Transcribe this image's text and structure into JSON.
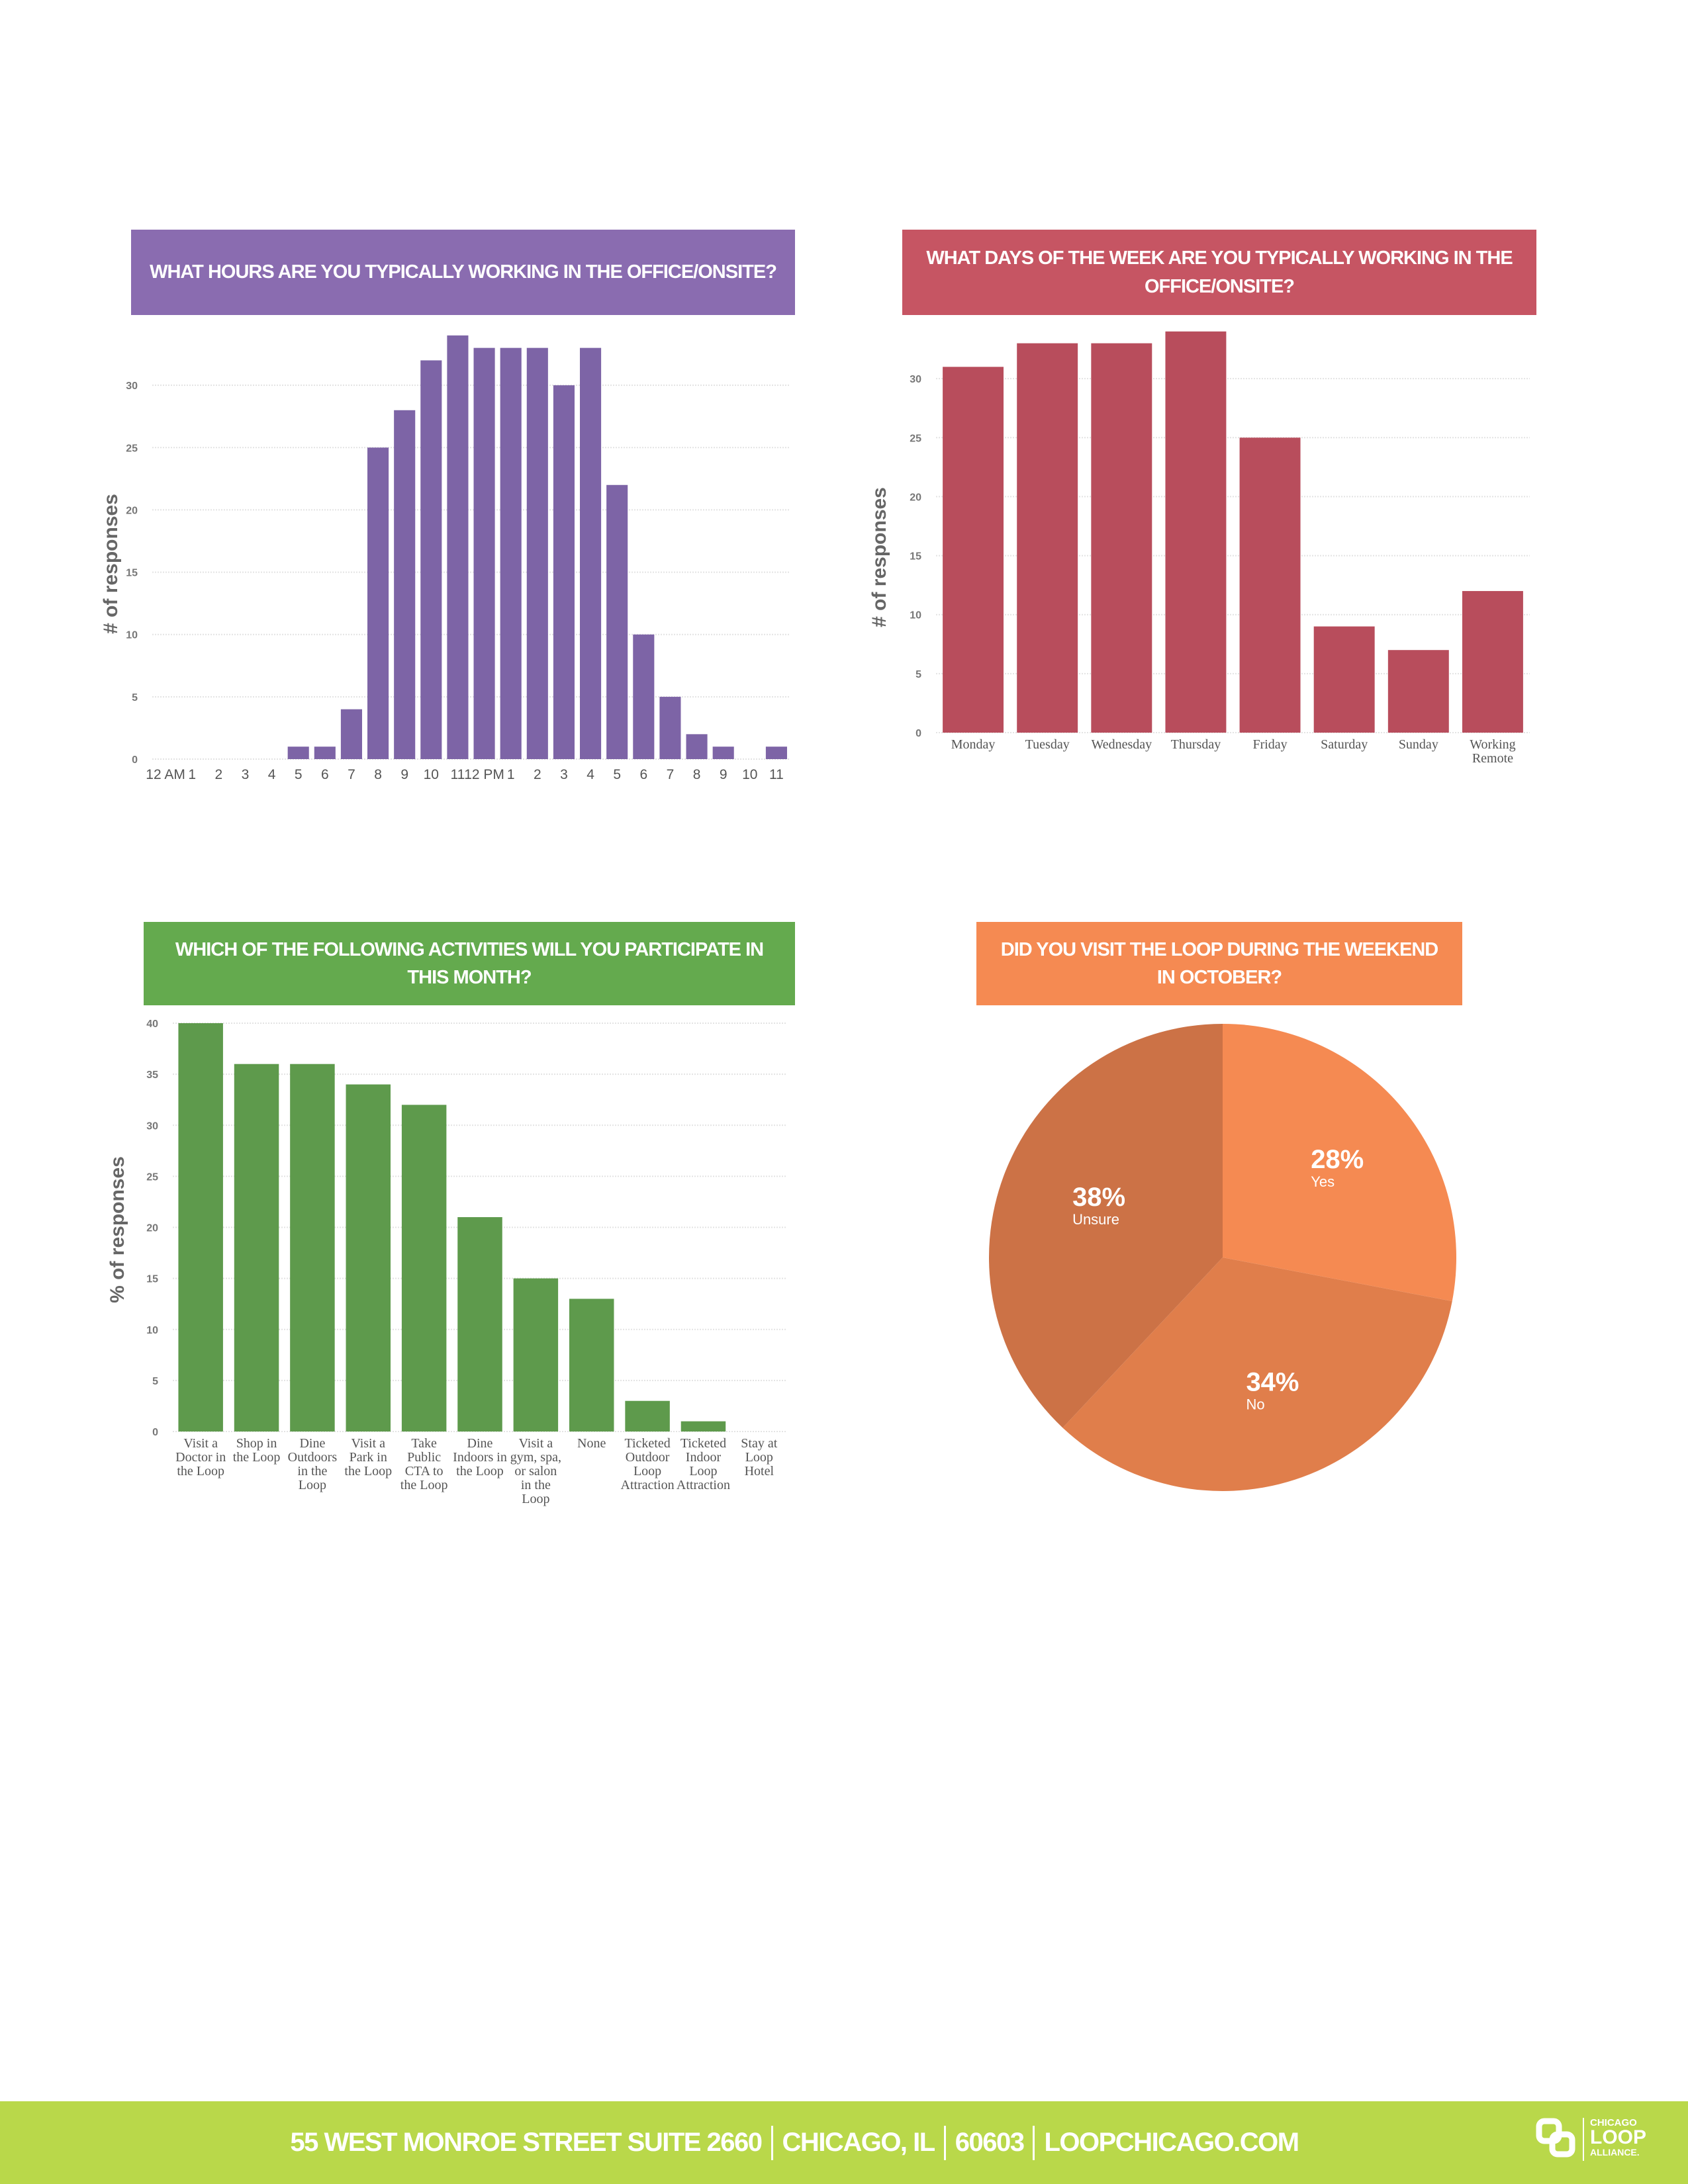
{
  "chart_data": [
    {
      "type": "bar",
      "title": "WHAT HOURS ARE YOU TYPICALLY WORKING IN THE OFFICE/ONSITE?",
      "ylabel": "# of responses",
      "categories": [
        "12 AM",
        "1",
        "2",
        "3",
        "4",
        "5",
        "6",
        "7",
        "8",
        "9",
        "10",
        "11",
        "12 PM",
        "1",
        "2",
        "3",
        "4",
        "5",
        "6",
        "7",
        "8",
        "9",
        "10",
        "11"
      ],
      "values": [
        0,
        0,
        0,
        0,
        0,
        1,
        1,
        4,
        25,
        28,
        32,
        34,
        33,
        33,
        33,
        30,
        33,
        22,
        10,
        5,
        2,
        1,
        0,
        1
      ],
      "color": "#7d64a6",
      "header_color": "#8a6cb0",
      "ylim": [
        0,
        35
      ],
      "yticks": [
        0,
        5,
        10,
        15,
        20,
        25,
        30
      ],
      "grid": true
    },
    {
      "type": "bar",
      "title": "WHAT DAYS OF THE WEEK ARE YOU TYPICALLY WORKING IN THE OFFICE/ONSITE?",
      "ylabel": "# of responses",
      "categories": [
        "Monday",
        "Tuesday",
        "Wednesday",
        "Thursday",
        "Friday",
        "Saturday",
        "Sunday",
        "Working Remote"
      ],
      "values": [
        31,
        33,
        33,
        34,
        25,
        9,
        7,
        12
      ],
      "color": "#b84d5c",
      "header_color": "#c65563",
      "ylim": [
        0,
        35
      ],
      "yticks": [
        0,
        5,
        10,
        15,
        20,
        25,
        30
      ],
      "grid": true
    },
    {
      "type": "bar",
      "title": "WHICH OF THE FOLLOWING ACTIVITIES WILL YOU PARTICIPATE IN THIS MONTH?",
      "ylabel": "% of responses",
      "categories": [
        "Visit a Doctor in the Loop",
        "Shop in the Loop",
        "Dine Outdoors in the Loop",
        "Visit a Park in the Loop",
        "Take Public CTA to the Loop",
        "Dine Indoors in the Loop",
        "Visit a gym, spa, or salon in the Loop",
        "None",
        "Ticketed Outdoor Loop Attraction",
        "Ticketed Indoor Loop Attraction",
        "Stay at Loop Hotel"
      ],
      "values": [
        40,
        36,
        36,
        34,
        32,
        21,
        15,
        13,
        3,
        1,
        0
      ],
      "color": "#5e9a4c",
      "header_color": "#64aa4e",
      "ylim": [
        0,
        40
      ],
      "yticks": [
        0,
        5,
        10,
        15,
        20,
        25,
        30,
        35,
        40
      ],
      "grid": true
    },
    {
      "type": "pie",
      "title": "DID YOU VISIT THE LOOP DURING THE WEEKEND IN OCTOBER?",
      "categories": [
        "Yes",
        "No",
        "Unsure"
      ],
      "values": [
        28,
        34,
        38
      ],
      "value_labels": [
        "28%",
        "34%",
        "38%"
      ],
      "colors": [
        "#f58a52",
        "#e07e4b",
        "#cc7246"
      ],
      "header_color": "#f58a52"
    }
  ],
  "footer": {
    "address": [
      "55 WEST MONROE STREET SUITE 2660",
      "CHICAGO, IL",
      "60603",
      "LOOPCHICAGO.COM"
    ],
    "logo": [
      "CHICAGO",
      "LOOP",
      "ALLIANCE."
    ],
    "color": "#b9d84a"
  }
}
